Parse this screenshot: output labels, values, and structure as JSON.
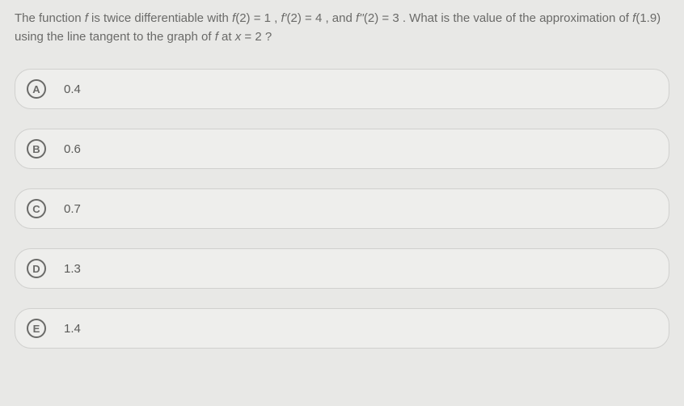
{
  "question": {
    "text_html": "The function <i>f</i> is twice differentiable with <i>f</i>(2) = 1 , <i>f'</i>(2) = 4 , and <i>f''</i>(2) = 3 . What is the value of the approximation of <i>f</i>(1.9) using the line tangent to the graph of <i>f</i> at <i>x</i> = 2 ?"
  },
  "options": [
    {
      "letter": "A",
      "text": "0.4"
    },
    {
      "letter": "B",
      "text": "0.6"
    },
    {
      "letter": "C",
      "text": "0.7"
    },
    {
      "letter": "D",
      "text": "1.3"
    },
    {
      "letter": "E",
      "text": "1.4"
    }
  ],
  "style": {
    "background_color": "#e8e8e6",
    "option_bg": "#eeeeec",
    "option_border": "#d0d0ce",
    "text_color": "#6a6a68",
    "option_text_color": "#5a5a58",
    "question_fontsize": 15,
    "option_fontsize": 15,
    "letter_circle_size": 24,
    "border_radius": 20
  }
}
